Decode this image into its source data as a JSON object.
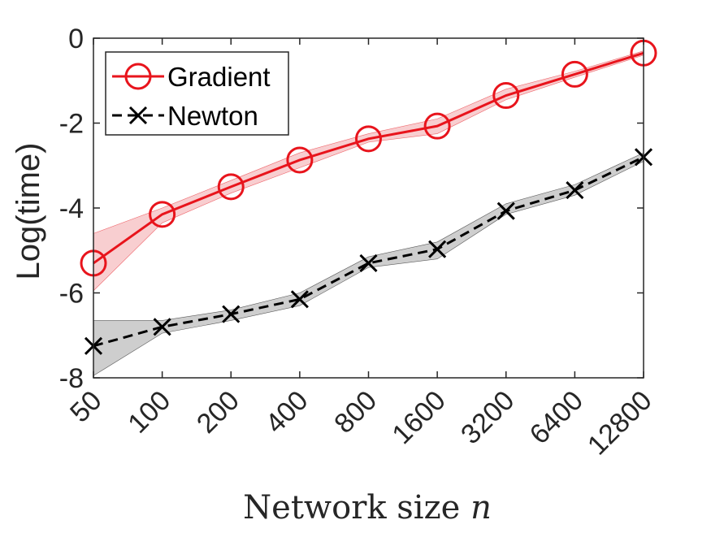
{
  "chart_data": {
    "type": "line",
    "xlabel": "Network size",
    "xlabel_var": "n",
    "ylabel": "Log(time)",
    "categories": [
      "50",
      "100",
      "200",
      "400",
      "800",
      "1600",
      "3200",
      "6400",
      "12800"
    ],
    "yticks": [
      "0",
      "-2",
      "-4",
      "-6",
      "-8"
    ],
    "ytick_values": [
      0,
      -2,
      -4,
      -6,
      -8
    ],
    "ylim": [
      -8,
      0
    ],
    "grid": false,
    "legend_position": "top-left",
    "series": [
      {
        "name": "Gradient",
        "color": "#e8141c",
        "marker": "circle",
        "line_style": "solid",
        "values": [
          -5.3,
          -4.15,
          -3.5,
          -2.87,
          -2.37,
          -2.07,
          -1.35,
          -0.85,
          -0.35
        ],
        "band_upper": [
          -4.6,
          -4.0,
          -3.35,
          -2.7,
          -2.25,
          -1.9,
          -1.2,
          -0.78,
          -0.3
        ],
        "band_lower": [
          -5.95,
          -4.35,
          -3.65,
          -3.05,
          -2.45,
          -2.25,
          -1.45,
          -0.92,
          -0.4
        ]
      },
      {
        "name": "Newton",
        "color": "#000000",
        "marker": "x",
        "line_style": "dashed",
        "values": [
          -7.25,
          -6.8,
          -6.5,
          -6.15,
          -5.3,
          -4.97,
          -4.07,
          -3.58,
          -2.8
        ],
        "band_upper": [
          -6.65,
          -6.65,
          -6.4,
          -6.0,
          -5.15,
          -4.8,
          -3.9,
          -3.45,
          -2.7
        ],
        "band_lower": [
          -7.95,
          -6.95,
          -6.65,
          -6.3,
          -5.4,
          -5.2,
          -4.15,
          -3.7,
          -2.9
        ]
      }
    ]
  }
}
